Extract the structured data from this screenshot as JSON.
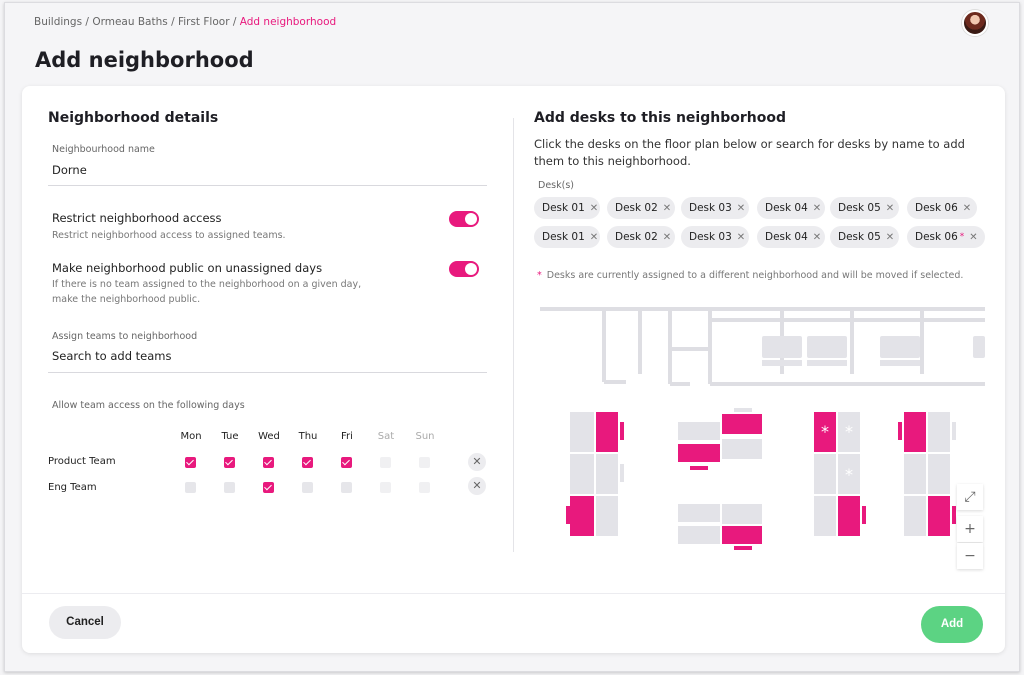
{
  "breadcrumb": {
    "items": [
      "Buildings",
      "Ormeau Baths",
      "First Floor"
    ],
    "current": "Add neighborhood",
    "separator": "/"
  },
  "page": {
    "title": "Add neighborhood"
  },
  "details": {
    "title": "Neighborhood details",
    "name_label": "Neighbourhood name",
    "name_value": "Dorne",
    "restrict_title": "Restrict neighborhood access",
    "restrict_desc": "Restrict neighborhood access to assigned teams.",
    "restrict_on": true,
    "public_title": "Make neighborhood public on unassigned days",
    "public_desc_1": "If there is no team assigned to the neighborhood on a given day,",
    "public_desc_2": "make the neighborhood public.",
    "public_on": true,
    "teams_label": "Assign teams to neighborhood",
    "teams_placeholder": "Search to add teams",
    "days_label": "Allow team access on the following days",
    "days": [
      "Mon",
      "Tue",
      "Wed",
      "Thu",
      "Fri",
      "Sat",
      "Sun"
    ],
    "teams": [
      {
        "name": "Product Team",
        "days": [
          true,
          true,
          true,
          true,
          true,
          false,
          false
        ]
      },
      {
        "name": "Eng Team",
        "days": [
          false,
          false,
          true,
          false,
          false,
          false,
          false
        ]
      }
    ],
    "remove_icon": "close-icon"
  },
  "desks": {
    "title": "Add desks to this neighborhood",
    "desc": "Click the desks on the floor plan below or search for desks by name to add them to this neighborhood.",
    "desks_label": "Desk(s)",
    "chips_row1": [
      "Desk 01",
      "Desk 02",
      "Desk 03",
      "Desk 04",
      "Desk 05",
      "Desk 06"
    ],
    "chips_row2": [
      "Desk 01",
      "Desk 02",
      "Desk 03",
      "Desk 04",
      "Desk 05",
      "Desk 06"
    ],
    "note_marker": "*",
    "note": "Desks are currently assigned to a different neighborhood and will be moved if selected."
  },
  "map_controls": {
    "expand_icon": "expand-icon",
    "zoom_in": "+",
    "zoom_out": "−"
  },
  "footer": {
    "cancel_label": "Cancel",
    "add_label": "Add"
  },
  "colors": {
    "accent": "#e8197d",
    "add": "#5cd383",
    "desk_empty": "#e3e3e8"
  }
}
